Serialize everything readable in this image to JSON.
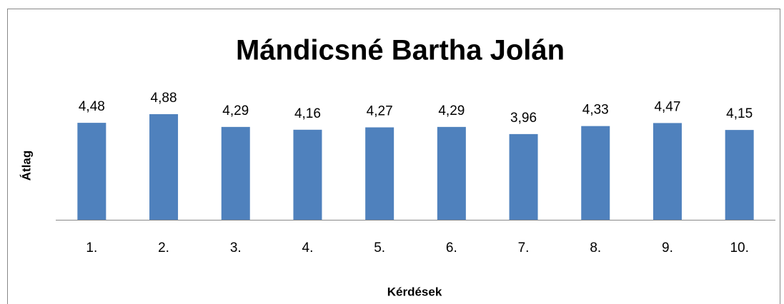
{
  "chart_data": {
    "type": "bar",
    "title": "Mándicsné Bartha Jolán",
    "x_label": "Kérdések",
    "y_label": "Átlag",
    "categories": [
      "1.",
      "2.",
      "3.",
      "4.",
      "5.",
      "6.",
      "7.",
      "8.",
      "9.",
      "10."
    ],
    "values": [
      4.48,
      4.88,
      4.29,
      4.16,
      4.27,
      4.29,
      3.96,
      4.33,
      4.47,
      4.15
    ],
    "value_labels": [
      "4,48",
      "4,88",
      "4,29",
      "4,16",
      "4,27",
      "4,29",
      "3,96",
      "4,33",
      "4,47",
      "4,15"
    ],
    "color": "#4f81bd",
    "ylim": [
      0,
      6
    ]
  }
}
